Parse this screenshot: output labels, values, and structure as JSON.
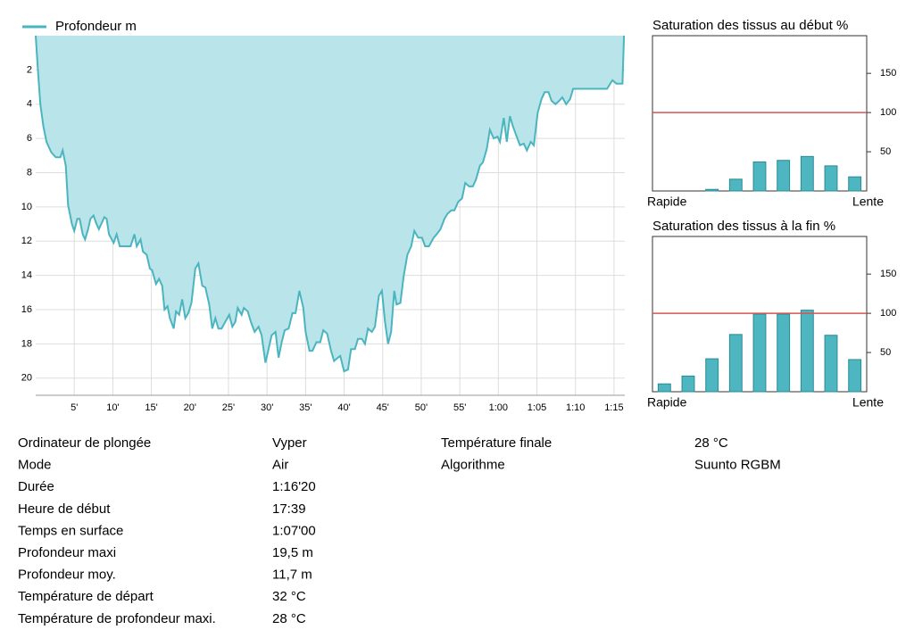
{
  "chart_data": [
    {
      "type": "area",
      "x": [
        0,
        0.3,
        0.6,
        1.0,
        1.4,
        2.0,
        2.6,
        3.2,
        3.5,
        3.9,
        4.2,
        4.7,
        5.0,
        5.4,
        5.7,
        6.1,
        6.4,
        6.8,
        7.1,
        7.5,
        7.8,
        8.2,
        8.5,
        8.9,
        9.2,
        9.5,
        10.1,
        10.5,
        10.9,
        11.6,
        12.3,
        12.8,
        13.1,
        13.6,
        13.9,
        14.4,
        14.8,
        15.1,
        15.6,
        16.0,
        16.4,
        16.7,
        17.1,
        17.4,
        17.9,
        18.2,
        18.6,
        19.0,
        19.4,
        19.8,
        20.2,
        20.7,
        21.1,
        21.6,
        22.0,
        22.5,
        22.9,
        23.3,
        23.7,
        24.1,
        24.6,
        25.1,
        25.5,
        25.9,
        26.2,
        26.7,
        27.0,
        27.5,
        27.9,
        28.4,
        28.9,
        29.3,
        29.8,
        30.2,
        30.6,
        31.1,
        31.5,
        31.9,
        32.3,
        32.8,
        33.3,
        33.7,
        34.2,
        34.7,
        35.0,
        35.5,
        35.9,
        36.4,
        36.9,
        37.3,
        37.8,
        38.3,
        38.7,
        39.2,
        39.5,
        40.0,
        40.5,
        40.9,
        41.4,
        41.8,
        42.3,
        42.7,
        43.1,
        43.6,
        44.0,
        44.5,
        44.9,
        45.3,
        45.7,
        46.1,
        46.5,
        46.8,
        47.3,
        47.7,
        48.2,
        48.7,
        49.1,
        49.6,
        50.1,
        50.5,
        51.0,
        51.6,
        52.0,
        52.5,
        53.0,
        53.4,
        53.9,
        54.3,
        54.8,
        55.3,
        55.7,
        56.2,
        56.7,
        57.1,
        57.6,
        58.0,
        58.5,
        58.9,
        59.4,
        59.9,
        60.2,
        60.7,
        61.1,
        61.5,
        61.9,
        62.3,
        62.8,
        63.3,
        63.7,
        64.2,
        64.6,
        65.1,
        65.6,
        66.0,
        66.5,
        66.9,
        67.4,
        67.9,
        68.3,
        68.8,
        69.3,
        69.7,
        71.8,
        74.1,
        74.8,
        75.3,
        76.1,
        76.3
      ],
      "series": [
        {
          "name": "Profondeur m",
          "color": "#4bb5bf",
          "fill": "#b9e4e9",
          "values": [
            0,
            2.1,
            4.0,
            5.3,
            6.2,
            6.8,
            7.1,
            7.1,
            6.7,
            7.6,
            9.9,
            11.0,
            11.4,
            10.7,
            10.7,
            11.6,
            11.9,
            11.3,
            10.7,
            10.5,
            10.9,
            11.3,
            11.0,
            10.6,
            10.7,
            11.6,
            12.1,
            11.6,
            12.3,
            12.3,
            12.3,
            11.6,
            12.3,
            11.9,
            12.6,
            12.8,
            13.6,
            13.7,
            14.5,
            14.2,
            14.6,
            16.0,
            15.8,
            16.5,
            17.1,
            16.1,
            16.3,
            15.4,
            16.5,
            16.2,
            15.6,
            13.6,
            13.3,
            14.6,
            14.7,
            15.7,
            17.1,
            16.5,
            17.1,
            17.1,
            16.7,
            16.3,
            17.0,
            16.7,
            15.9,
            16.3,
            15.9,
            16.1,
            16.7,
            17.3,
            17.0,
            17.5,
            19.1,
            18.3,
            17.5,
            17.3,
            18.8,
            17.9,
            17.2,
            17.1,
            16.2,
            16.2,
            14.9,
            15.9,
            17.3,
            18.4,
            18.4,
            17.9,
            17.9,
            17.2,
            17.4,
            18.4,
            19.0,
            18.8,
            18.7,
            19.6,
            19.5,
            18.3,
            18.3,
            17.7,
            17.7,
            18.0,
            17.1,
            17.3,
            17.0,
            15.2,
            14.9,
            16.7,
            18.0,
            17.3,
            14.9,
            15.7,
            15.6,
            14.1,
            12.8,
            12.3,
            11.4,
            11.8,
            11.8,
            12.3,
            12.3,
            11.8,
            11.6,
            11.3,
            10.7,
            10.4,
            10.2,
            10.2,
            9.7,
            9.5,
            8.6,
            8.8,
            8.8,
            8.4,
            7.6,
            7.4,
            6.6,
            5.5,
            6.0,
            5.9,
            6.2,
            4.8,
            6.2,
            4.7,
            5.3,
            5.8,
            6.4,
            6.3,
            6.7,
            6.2,
            6.4,
            4.5,
            3.7,
            3.3,
            3.3,
            3.8,
            4.0,
            3.8,
            3.6,
            4.0,
            3.7,
            3.1,
            3.1,
            3.1,
            2.6,
            2.8,
            2.8,
            0
          ]
        }
      ],
      "xlim": [
        0,
        76.4
      ],
      "xticks": [
        {
          "value": 5,
          "label": "5'"
        },
        {
          "value": 10,
          "label": "10'"
        },
        {
          "value": 15,
          "label": "15'"
        },
        {
          "value": 20,
          "label": "20'"
        },
        {
          "value": 25,
          "label": "25'"
        },
        {
          "value": 30,
          "label": "30'"
        },
        {
          "value": 35,
          "label": "35'"
        },
        {
          "value": 40,
          "label": "40'"
        },
        {
          "value": 45,
          "label": "45'"
        },
        {
          "value": 50,
          "label": "50'"
        },
        {
          "value": 55,
          "label": "55'"
        },
        {
          "value": 60,
          "label": "1:00"
        },
        {
          "value": 65,
          "label": "1:05"
        },
        {
          "value": 70,
          "label": "1:10"
        },
        {
          "value": 75,
          "label": "1:15"
        }
      ],
      "ylim": [
        0,
        21
      ],
      "y_inverted": true,
      "yticks": [
        2,
        4,
        6,
        8,
        10,
        12,
        14,
        16,
        18,
        20
      ],
      "grid": true,
      "legend": "top-left"
    },
    {
      "type": "bar",
      "title": "Saturation des tissus au début %",
      "categories": [
        null,
        null,
        null,
        null,
        null,
        null,
        null,
        null,
        null
      ],
      "values": [
        0,
        0,
        2,
        15,
        37,
        39,
        44,
        32,
        18
      ],
      "color": "#4db6c0",
      "x_labels": {
        "start": "Rapide",
        "end": "Lente"
      },
      "ylim": [
        0,
        198
      ],
      "yticks": [
        50,
        100,
        150
      ],
      "reference_line": {
        "value": 100,
        "color": "#d9534f"
      }
    },
    {
      "type": "bar",
      "title": "Saturation des tissus à la fin %",
      "categories": [
        null,
        null,
        null,
        null,
        null,
        null,
        null,
        null,
        null
      ],
      "values": [
        10,
        20,
        42,
        73,
        99,
        99,
        104,
        72,
        41
      ],
      "color": "#4db6c0",
      "x_labels": {
        "start": "Rapide",
        "end": "Lente"
      },
      "ylim": [
        0,
        198
      ],
      "yticks": [
        50,
        100,
        150
      ],
      "reference_line": {
        "value": 100,
        "color": "#d9534f"
      }
    }
  ],
  "details": {
    "left": [
      [
        "Ordinateur de plongée",
        "Vyper"
      ],
      [
        "Mode",
        "Air"
      ],
      [
        "Durée",
        "1:16'20"
      ],
      [
        "Heure de début",
        "17:39"
      ],
      [
        "Temps en surface",
        "1:07'00"
      ],
      [
        "Profondeur maxi",
        "19,5 m"
      ],
      [
        "Profondeur moy.",
        "11,7 m"
      ],
      [
        "Température de départ",
        "32 °C"
      ],
      [
        "Température de profondeur maxi.",
        "28 °C"
      ]
    ],
    "right": [
      [
        "Température finale",
        "28 °C"
      ],
      [
        "Algorithme",
        "Suunto RGBM"
      ]
    ]
  }
}
